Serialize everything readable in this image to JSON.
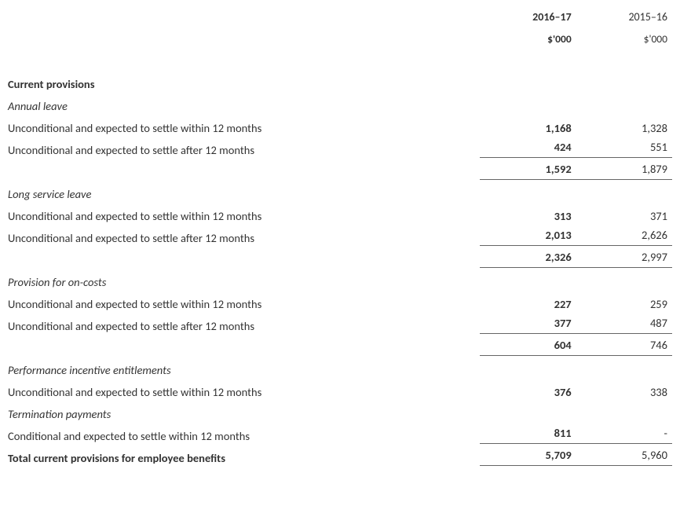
{
  "header": {
    "year_current": "2016–17",
    "unit_current": "$'000",
    "year_prior": "2015–16",
    "unit_prior": "$'000"
  },
  "sections": {
    "current_provisions": "Current provisions",
    "annual_leave": {
      "title": "Annual leave",
      "within_label": "Unconditional and expected to settle within 12 months",
      "within_v1": "1,168",
      "within_v2": "1,328",
      "after_label": "Unconditional and expected to settle after 12 months",
      "after_v1": "424",
      "after_v2": "551",
      "subtotal_v1": "1,592",
      "subtotal_v2": "1,879"
    },
    "long_service": {
      "title": "Long service leave",
      "within_label": "Unconditional and expected to settle within 12 months",
      "within_v1": "313",
      "within_v2": "371",
      "after_label": "Unconditional and expected to settle after 12 months",
      "after_v1": "2,013",
      "after_v2": "2,626",
      "subtotal_v1": "2,326",
      "subtotal_v2": "2,997"
    },
    "on_costs": {
      "title": "Provision for on-costs",
      "within_label": "Unconditional and expected to settle within 12 months",
      "within_v1": "227",
      "within_v2": "259",
      "after_label": "Unconditional and expected to settle after 12 months",
      "after_v1": "377",
      "after_v2": "487",
      "subtotal_v1": "604",
      "subtotal_v2": "746"
    },
    "perf_incentive": {
      "title": "Performance incentive entitlements",
      "within_label": "Unconditional and expected to settle within 12 months",
      "within_v1": "376",
      "within_v2": "338"
    },
    "termination": {
      "title": "Termination payments",
      "cond_label": "Conditional and expected to settle within 12 months",
      "cond_v1": "811",
      "cond_v2": "-"
    },
    "total": {
      "label": "Total current provisions for employee benefits",
      "v1": "5,709",
      "v2": "5,960"
    }
  }
}
